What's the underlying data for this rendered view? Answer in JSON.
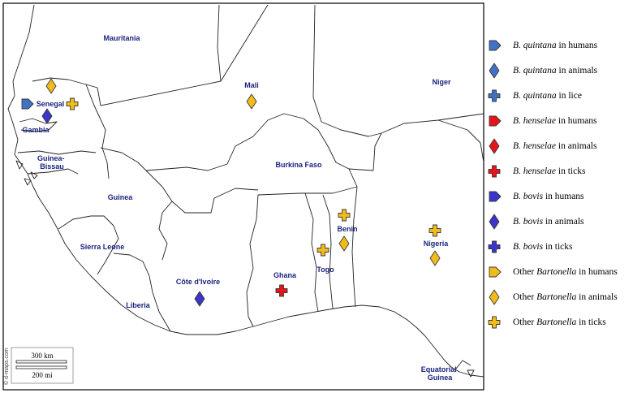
{
  "countries": [
    {
      "id": "mauritania",
      "name": "Mauritania"
    },
    {
      "id": "mali",
      "name": "Mali"
    },
    {
      "id": "niger",
      "name": "Niger"
    },
    {
      "id": "senegal",
      "name": "Senegal"
    },
    {
      "id": "gambia",
      "name": "Gambia"
    },
    {
      "id": "guinea-bissau",
      "name": "Guinea-\nBissau"
    },
    {
      "id": "guinea",
      "name": "Guinea"
    },
    {
      "id": "burkina-faso",
      "name": "Burkina Faso"
    },
    {
      "id": "sierra-leone",
      "name": "Sierra Leone"
    },
    {
      "id": "cote-divoire",
      "name": "Côte d'Ivoire"
    },
    {
      "id": "ghana",
      "name": "Ghana"
    },
    {
      "id": "togo",
      "name": "Togo"
    },
    {
      "id": "benin",
      "name": "Benin"
    },
    {
      "id": "nigeria",
      "name": "Nigeria"
    },
    {
      "id": "liberia",
      "name": "Liberia"
    },
    {
      "id": "equatorial-guinea",
      "name": "Equatorial\nGuinea"
    }
  ],
  "colors": {
    "quintana": "#3f72c2",
    "henselae": "#e8141b",
    "bovis": "#3b35c9",
    "other": "#f2bb1c"
  },
  "legend": [
    {
      "shape": "pentagon",
      "group": "quintana",
      "species": "B. quintana",
      "rest": " in humans"
    },
    {
      "shape": "diamond",
      "group": "quintana",
      "species": "B. quintana",
      "rest": " in animals"
    },
    {
      "shape": "cross",
      "group": "quintana",
      "species": "B. quintana",
      "rest": " in lice"
    },
    {
      "shape": "pentagon",
      "group": "henselae",
      "species": "B. henselae",
      "rest": " in humans"
    },
    {
      "shape": "diamond",
      "group": "henselae",
      "species": "B. henselae",
      "rest": "  in animals"
    },
    {
      "shape": "cross",
      "group": "henselae",
      "species": "B. henselae",
      "rest": " in ticks"
    },
    {
      "shape": "pentagon",
      "group": "bovis",
      "species": "B. bovis",
      "rest": " in humans"
    },
    {
      "shape": "diamond",
      "group": "bovis",
      "species": "B. bovis",
      "rest": " in animals"
    },
    {
      "shape": "cross",
      "group": "bovis",
      "species": "B. bovis",
      "rest": " in ticks"
    },
    {
      "shape": "pentagon",
      "group": "other",
      "prefix": "Other ",
      "species": "Bartonella",
      "rest": " in humans"
    },
    {
      "shape": "diamond",
      "group": "other",
      "prefix": "Other ",
      "species": "Bartonella",
      "rest": " in animals"
    },
    {
      "shape": "cross",
      "group": "other",
      "prefix": "Other ",
      "species": "Bartonella",
      "rest": " in ticks"
    }
  ],
  "markers": [
    {
      "country": "senegal",
      "shape": "pentagon",
      "group": "quintana"
    },
    {
      "country": "senegal",
      "shape": "diamond",
      "group": "other"
    },
    {
      "country": "senegal",
      "shape": "cross",
      "group": "other"
    },
    {
      "country": "senegal",
      "shape": "diamond",
      "group": "bovis"
    },
    {
      "country": "mali",
      "shape": "diamond",
      "group": "other"
    },
    {
      "country": "ghana",
      "shape": "cross",
      "group": "henselae"
    },
    {
      "country": "cote-divoire",
      "shape": "diamond",
      "group": "bovis"
    },
    {
      "country": "togo",
      "shape": "cross",
      "group": "other"
    },
    {
      "country": "benin",
      "shape": "cross",
      "group": "other"
    },
    {
      "country": "benin",
      "shape": "diamond",
      "group": "other"
    },
    {
      "country": "nigeria",
      "shape": "cross",
      "group": "other"
    },
    {
      "country": "nigeria",
      "shape": "diamond",
      "group": "other"
    }
  ],
  "scale_bar": {
    "km": "300 km",
    "mi": "200 mi"
  },
  "credit": "© d-maps.com"
}
